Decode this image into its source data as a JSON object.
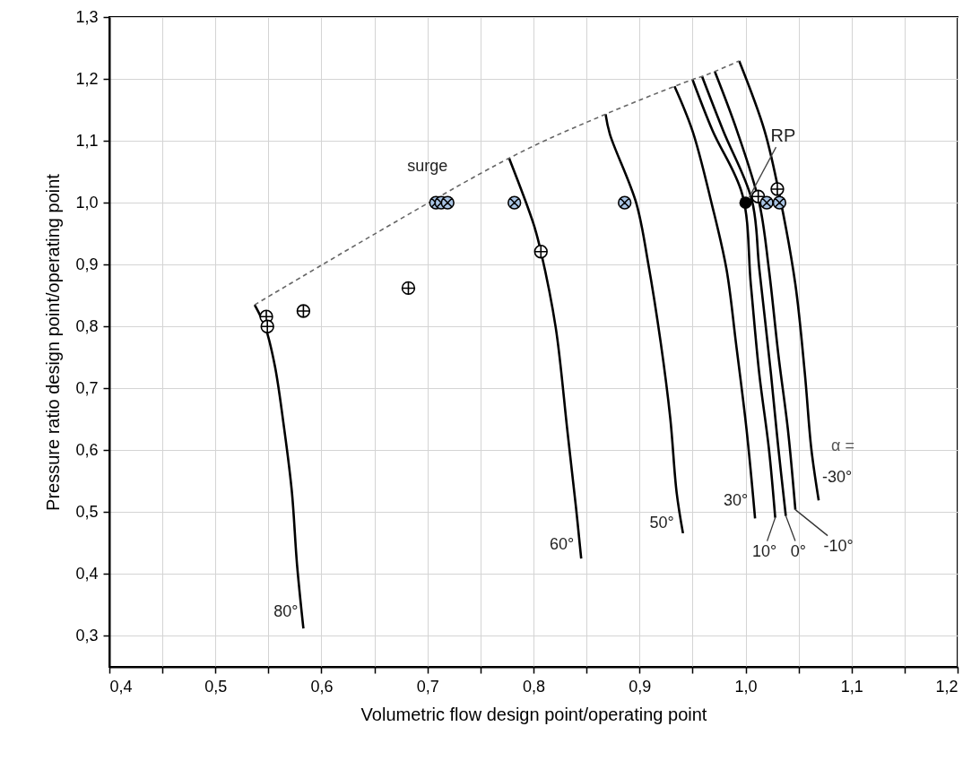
{
  "chart_data": {
    "type": "line",
    "xlabel": "Volumetric flow design point/operating point",
    "ylabel": "Pressure ratio design point/operating point",
    "xlim": [
      0.4,
      1.2
    ],
    "ylim": [
      0.25,
      1.3
    ],
    "xticks": [
      {
        "value": 0.4,
        "label": "0,4"
      },
      {
        "value": 0.45,
        "label": null
      },
      {
        "value": 0.5,
        "label": "0,5"
      },
      {
        "value": 0.55,
        "label": null
      },
      {
        "value": 0.6,
        "label": "0,6"
      },
      {
        "value": 0.65,
        "label": null
      },
      {
        "value": 0.7,
        "label": "0,7"
      },
      {
        "value": 0.75,
        "label": null
      },
      {
        "value": 0.8,
        "label": "0,8"
      },
      {
        "value": 0.85,
        "label": null
      },
      {
        "value": 0.9,
        "label": "0,9"
      },
      {
        "value": 0.95,
        "label": null
      },
      {
        "value": 1.0,
        "label": "1,0"
      },
      {
        "value": 1.05,
        "label": null
      },
      {
        "value": 1.1,
        "label": "1,1"
      },
      {
        "value": 1.15,
        "label": null
      },
      {
        "value": 1.2,
        "label": "1,2"
      }
    ],
    "yticks": [
      {
        "value": 0.3,
        "label": "0,3"
      },
      {
        "value": 0.4,
        "label": "0,4"
      },
      {
        "value": 0.5,
        "label": "0,5"
      },
      {
        "value": 0.6,
        "label": "0,6"
      },
      {
        "value": 0.7,
        "label": "0,7"
      },
      {
        "value": 0.8,
        "label": "0,8"
      },
      {
        "value": 0.9,
        "label": "0,9"
      },
      {
        "value": 1.0,
        "label": "1,0"
      },
      {
        "value": 1.1,
        "label": "1,1"
      },
      {
        "value": 1.2,
        "label": "1,2"
      },
      {
        "value": 1.3,
        "label": "1,3"
      }
    ],
    "grid": true,
    "line_style": "solid",
    "series": [
      {
        "name": "80°",
        "color": "#000000",
        "x": [
          0.537,
          0.547,
          0.556,
          0.564,
          0.572,
          0.577,
          0.583
        ],
        "values": [
          0.835,
          0.799,
          0.737,
          0.646,
          0.535,
          0.415,
          0.312
        ]
      },
      {
        "name": "60°",
        "color": "#000000",
        "x": [
          0.777,
          0.8,
          0.807,
          0.821,
          0.832,
          0.84,
          0.845
        ],
        "values": [
          1.072,
          0.966,
          0.921,
          0.798,
          0.631,
          0.509,
          0.425
        ]
      },
      {
        "name": "50°",
        "color": "#000000",
        "x": [
          0.868,
          0.872,
          0.897,
          0.908,
          0.92,
          0.929,
          0.935,
          0.941
        ],
        "values": [
          1.143,
          1.111,
          0.999,
          0.904,
          0.774,
          0.652,
          0.532,
          0.466
        ]
      },
      {
        "name": "30°",
        "color": "#000000",
        "x": [
          0.933,
          0.95,
          0.968,
          0.982,
          0.991,
          1.001,
          1.009
        ],
        "values": [
          1.188,
          1.116,
          0.999,
          0.893,
          0.773,
          0.633,
          0.49
        ]
      },
      {
        "name": "10°",
        "color": "#000000",
        "x": [
          0.95,
          0.969,
          0.997,
          1.005,
          1.013,
          1.022,
          1.028
        ],
        "values": [
          1.199,
          1.116,
          1.013,
          0.868,
          0.723,
          0.603,
          0.491
        ]
      },
      {
        "name": "0°",
        "color": "#000000",
        "x": [
          0.959,
          0.979,
          1.006,
          1.013,
          1.024,
          1.031,
          1.038
        ],
        "values": [
          1.204,
          1.116,
          1.004,
          0.893,
          0.723,
          0.603,
          0.494
        ]
      },
      {
        "name": "-10°",
        "color": "#000000",
        "x": [
          0.971,
          0.992,
          1.013,
          1.022,
          1.031,
          1.04,
          1.047
        ],
        "values": [
          1.212,
          1.116,
          0.999,
          0.893,
          0.754,
          0.633,
          0.504
        ]
      },
      {
        "name": "-30°",
        "color": "#000000",
        "x": [
          0.994,
          1.018,
          1.033,
          1.047,
          1.056,
          1.062,
          1.069
        ],
        "values": [
          1.229,
          1.116,
          1.004,
          0.868,
          0.723,
          0.603,
          0.519
        ]
      },
      {
        "name": "surge",
        "color": "#666666",
        "line_style": "dashed",
        "x": [
          0.537,
          0.777,
          0.868,
          0.933,
          0.95,
          0.959,
          0.971,
          0.994
        ],
        "values": [
          0.835,
          1.072,
          1.143,
          1.188,
          1.199,
          1.204,
          1.212,
          1.229
        ]
      },
      {
        "type": "scatter",
        "marker": "cross",
        "color": "#000000",
        "x": [
          0.548,
          0.549,
          0.583,
          0.682,
          0.807,
          1.012,
          1.03
        ],
        "values": [
          0.816,
          0.8,
          0.825,
          0.862,
          0.921,
          1.01,
          1.022
        ]
      },
      {
        "type": "scatter",
        "marker": "cross",
        "color": "#a9c4e4",
        "x": [
          0.708,
          0.713,
          0.719,
          0.782,
          0.886,
          1.02,
          1.032
        ],
        "values": [
          1.0,
          1.0,
          1.0,
          1.0,
          1.0,
          1.0,
          1.0
        ]
      },
      {
        "type": "scatter",
        "marker": "circle",
        "name": "RP",
        "color": "#000000",
        "x": [
          1.0
        ],
        "values": [
          1.0
        ]
      }
    ],
    "annotations": [
      "α ="
    ]
  }
}
